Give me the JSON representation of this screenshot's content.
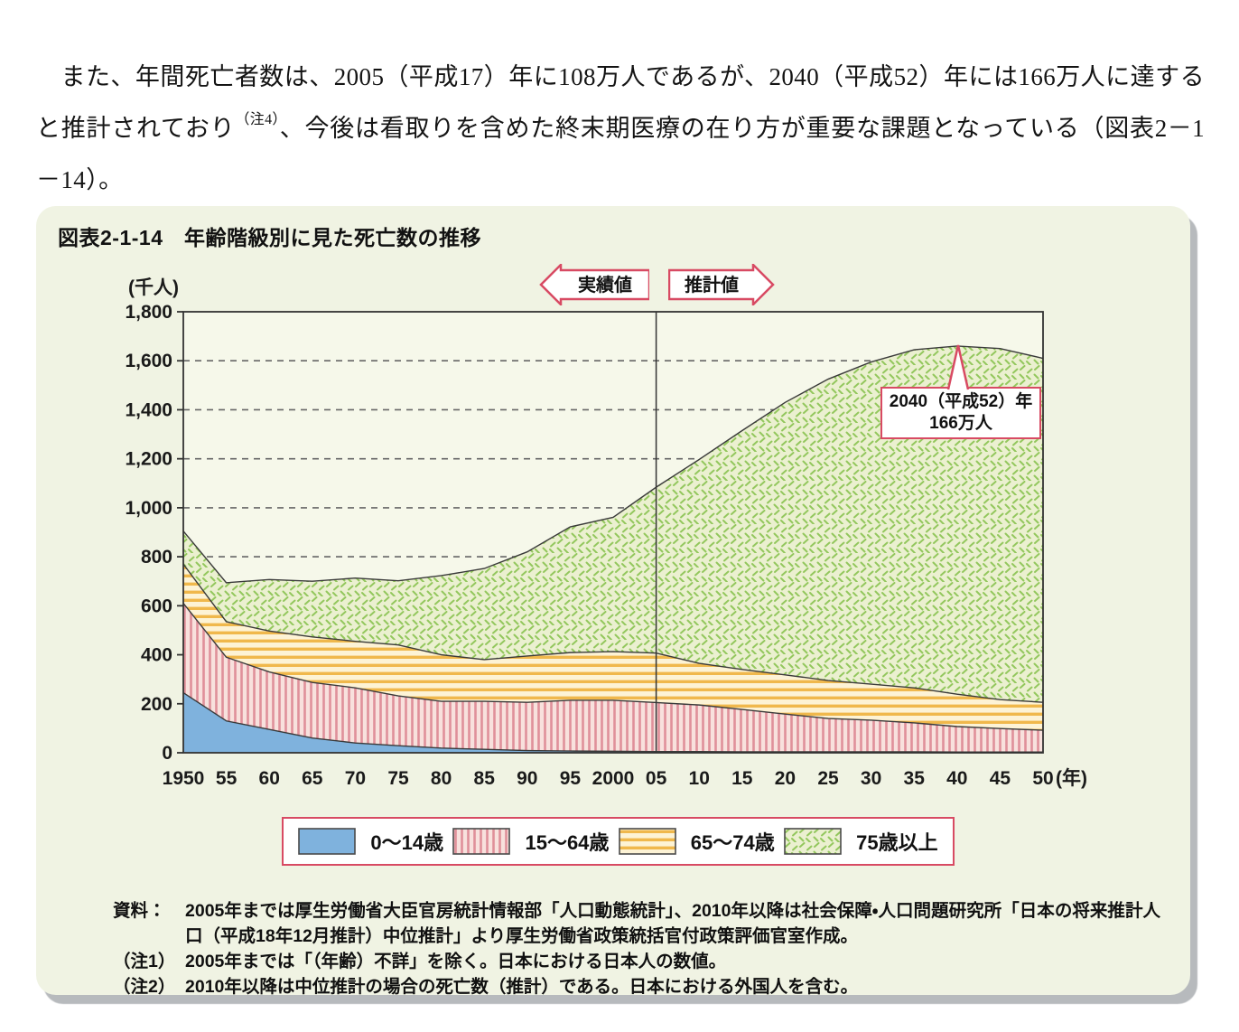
{
  "paragraph": {
    "before_note": "　また、年間死亡者数は、2005（平成17）年に108万人であるが、2040（平成52）年には166万人に達すると推計されており",
    "note_ref": "（注4）",
    "after_note": "、今後は看取りを含めた終末期医療の在り方が重要な課題となっている（図表2－1－14）。"
  },
  "figure": {
    "title": "図表2-1-14　年齢階級別に見た死亡数の推移",
    "notes": [
      {
        "label": "資料：",
        "text": "2005年までは厚生労働省大臣官房統計情報部「人口動態統計」、2010年以降は社会保障・人口問題研究所「日本の将来推計人口（平成18年12月推計）中位推計」より厚生労働省政策統括官付政策評価官室作成。"
      },
      {
        "label": "（注1）",
        "text": "2005年までは「（年齢）不詳」を除く。日本における日本人の数値。"
      },
      {
        "label": "（注2）",
        "text": "2010年以降は中位推計の場合の死亡数（推計）である。日本における外国人を含む。"
      }
    ]
  },
  "chart_data": {
    "type": "area",
    "stacked": true,
    "title": "年齢階級別に見た死亡数の推移",
    "unit_y": "(千人)",
    "unit_x": "(年)",
    "ylim": [
      0,
      1800
    ],
    "ytick_step": 200,
    "y_tick_labels": [
      "0",
      "200",
      "400",
      "600",
      "800",
      "1,000",
      "1,200",
      "1,400",
      "1,600",
      "1,800"
    ],
    "x_years": [
      1950,
      1955,
      1960,
      1965,
      1970,
      1975,
      1980,
      1985,
      1990,
      1995,
      2000,
      2005,
      2010,
      2015,
      2020,
      2025,
      2030,
      2035,
      2040,
      2045,
      2050
    ],
    "x_tick_labels": [
      "1950",
      "55",
      "60",
      "65",
      "70",
      "75",
      "80",
      "85",
      "90",
      "95",
      "2000",
      "05",
      "10",
      "15",
      "20",
      "25",
      "30",
      "35",
      "40",
      "45",
      "50"
    ],
    "grid": "dashed horizontal",
    "legend_position": "bottom box",
    "divider_year": 2005,
    "period_labels": {
      "actual": "実績値",
      "projected": "推計値"
    },
    "annotation": {
      "line1": "2040（平成52）年",
      "line2": "166万人",
      "target_year": 2040,
      "target_value": 1660
    },
    "series": [
      {
        "name": "0～14歳",
        "values": [
          245,
          130,
          95,
          60,
          40,
          29,
          19,
          14,
          9,
          7,
          6,
          5,
          5,
          4,
          4,
          4,
          4,
          4,
          3,
          3,
          3
        ]
      },
      {
        "name": "15～64歳",
        "values": [
          365,
          260,
          235,
          227,
          225,
          203,
          191,
          196,
          197,
          207,
          208,
          200,
          190,
          173,
          154,
          136,
          129,
          118,
          104,
          96,
          89
        ]
      },
      {
        "name": "65～74歳",
        "values": [
          160,
          145,
          167,
          186,
          190,
          208,
          190,
          170,
          189,
          195,
          199,
          202,
          170,
          163,
          160,
          155,
          147,
          143,
          132,
          118,
          114
        ]
      },
      {
        "name": "75歳以上",
        "values": [
          135,
          159,
          210,
          227,
          258,
          262,
          323,
          372,
          425,
          513,
          548,
          677,
          832,
          975,
          1112,
          1230,
          1315,
          1380,
          1421,
          1433,
          1404
        ]
      }
    ],
    "totals": [
      905,
      694,
      707,
      700,
      713,
      702,
      723,
      752,
      820,
      922,
      961,
      1084,
      1197,
      1315,
      1430,
      1525,
      1595,
      1645,
      1660,
      1650,
      1610
    ],
    "colors": {
      "accent": "#d84a63",
      "axis": "#333333",
      "blue_fill": "#7fb2dd",
      "pink_bg": "#f8e1dd",
      "pink_stripe": "#e0909a",
      "yellow_bg": "#fdf3d5",
      "yellow_stripe": "#f0b84c",
      "green_bg": "#ebf0d0",
      "green_dash": "#93c75d",
      "box_bg": "#f0f3e3",
      "plot_bg": "#f6f8ea",
      "shadow": "#b7babd"
    }
  }
}
